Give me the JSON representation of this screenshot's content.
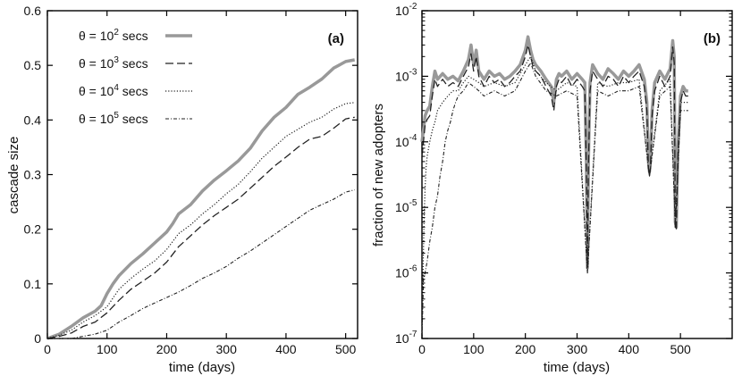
{
  "chart_data": [
    {
      "type": "line",
      "panel_label": "(a)",
      "xlabel": "time (days)",
      "ylabel": "cascade size",
      "xlim": [
        0,
        520
      ],
      "ylim": [
        0,
        0.6
      ],
      "xticks": [
        0,
        100,
        200,
        300,
        400,
        500
      ],
      "yticks": [
        0,
        0.1,
        0.2,
        0.3,
        0.4,
        0.5,
        0.6
      ],
      "xtick_labels": [
        "0",
        "100",
        "200",
        "300",
        "400",
        "500"
      ],
      "ytick_labels": [
        "0",
        "0.1",
        "0.2",
        "0.3",
        "0.4",
        "0.5",
        "0.6"
      ],
      "grid": false,
      "legend_position": "top-left",
      "series": [
        {
          "name": "θ = 10² secs",
          "name_base": "θ = 10",
          "name_exp": "2",
          "name_unit": "secs",
          "style": "thick-solid",
          "color": "#999999",
          "x": [
            0,
            20,
            40,
            60,
            80,
            90,
            100,
            110,
            120,
            140,
            160,
            180,
            200,
            210,
            220,
            240,
            260,
            280,
            300,
            320,
            340,
            360,
            380,
            400,
            420,
            440,
            460,
            480,
            500,
            515
          ],
          "y": [
            0,
            0.008,
            0.022,
            0.038,
            0.05,
            0.06,
            0.082,
            0.1,
            0.115,
            0.137,
            0.155,
            0.175,
            0.195,
            0.21,
            0.228,
            0.245,
            0.27,
            0.29,
            0.307,
            0.325,
            0.348,
            0.38,
            0.405,
            0.423,
            0.447,
            0.46,
            0.475,
            0.495,
            0.507,
            0.51
          ]
        },
        {
          "name": "θ = 10³ secs",
          "name_base": "θ = 10",
          "name_exp": "3",
          "name_unit": "secs",
          "style": "long-dash",
          "color": "#222222",
          "x": [
            0,
            20,
            40,
            60,
            80,
            100,
            120,
            140,
            160,
            180,
            200,
            220,
            240,
            260,
            280,
            300,
            320,
            340,
            360,
            380,
            400,
            420,
            440,
            460,
            480,
            500,
            515
          ],
          "y": [
            0,
            0.004,
            0.01,
            0.022,
            0.03,
            0.047,
            0.07,
            0.09,
            0.105,
            0.12,
            0.14,
            0.168,
            0.188,
            0.208,
            0.225,
            0.24,
            0.255,
            0.275,
            0.295,
            0.315,
            0.332,
            0.35,
            0.365,
            0.37,
            0.385,
            0.402,
            0.405
          ]
        },
        {
          "name": "θ = 10⁴ secs",
          "name_base": "θ = 10",
          "name_exp": "4",
          "name_unit": "secs",
          "style": "dotted",
          "color": "#222222",
          "x": [
            0,
            20,
            40,
            60,
            80,
            100,
            120,
            140,
            160,
            180,
            200,
            220,
            240,
            260,
            280,
            300,
            320,
            340,
            360,
            380,
            400,
            420,
            440,
            460,
            480,
            500,
            515
          ],
          "y": [
            0,
            0.006,
            0.015,
            0.03,
            0.042,
            0.058,
            0.09,
            0.11,
            0.127,
            0.142,
            0.163,
            0.192,
            0.208,
            0.228,
            0.245,
            0.265,
            0.282,
            0.305,
            0.33,
            0.35,
            0.37,
            0.383,
            0.396,
            0.405,
            0.42,
            0.43,
            0.432
          ]
        },
        {
          "name": "θ = 10⁵ secs",
          "name_base": "θ = 10",
          "name_exp": "5",
          "name_unit": "secs",
          "style": "dash-dot",
          "color": "#222222",
          "x": [
            0,
            40,
            60,
            80,
            100,
            120,
            140,
            160,
            180,
            200,
            220,
            240,
            260,
            280,
            300,
            320,
            340,
            360,
            380,
            400,
            420,
            440,
            460,
            480,
            500,
            515
          ],
          "y": [
            0,
            0.0,
            0.004,
            0.008,
            0.015,
            0.03,
            0.042,
            0.055,
            0.065,
            0.075,
            0.085,
            0.097,
            0.11,
            0.12,
            0.132,
            0.147,
            0.16,
            0.175,
            0.19,
            0.205,
            0.22,
            0.235,
            0.245,
            0.255,
            0.268,
            0.272
          ]
        }
      ]
    },
    {
      "type": "line",
      "panel_label": "(b)",
      "xlabel": "time (days)",
      "ylabel": "fraction of new adopters",
      "xlim": [
        0,
        600
      ],
      "ylim_exp": [
        -7,
        -2
      ],
      "yscale": "log",
      "xticks": [
        0,
        100,
        200,
        300,
        400,
        500
      ],
      "xtick_labels": [
        "0",
        "100",
        "200",
        "300",
        "400",
        "500"
      ],
      "ytick_base": "10",
      "ytick_exponents": [
        "-7",
        "-6",
        "-5",
        "-4",
        "-3",
        "-2"
      ],
      "grid": false,
      "series": [
        {
          "style": "thick-solid",
          "color": "#999999",
          "x": [
            0,
            3,
            6,
            10,
            15,
            20,
            25,
            30,
            40,
            50,
            60,
            70,
            80,
            90,
            95,
            100,
            105,
            110,
            120,
            130,
            140,
            150,
            160,
            170,
            180,
            190,
            200,
            205,
            210,
            215,
            220,
            230,
            240,
            250,
            255,
            260,
            265,
            270,
            280,
            290,
            300,
            310,
            315,
            318,
            320,
            322,
            325,
            330,
            340,
            350,
            360,
            370,
            380,
            390,
            400,
            410,
            420,
            430,
            435,
            438,
            440,
            442,
            445,
            450,
            460,
            470,
            480,
            485,
            488,
            490,
            492,
            495,
            500,
            505,
            510,
            515
          ],
          "y": [
            0.0001,
            0.00015,
            0.00025,
            0.0003,
            0.00035,
            0.0007,
            0.0012,
            0.0009,
            0.0011,
            0.0009,
            0.001,
            0.00085,
            0.0012,
            0.0018,
            0.003,
            0.0015,
            0.0025,
            0.0012,
            0.0009,
            0.0012,
            0.001,
            0.0011,
            0.0009,
            0.001,
            0.0012,
            0.0015,
            0.0025,
            0.004,
            0.0025,
            0.0018,
            0.0015,
            0.0012,
            0.0009,
            0.0007,
            0.0004,
            0.0009,
            0.0011,
            0.001,
            0.0012,
            0.0009,
            0.0011,
            0.0009,
            0.0008,
            5e-05,
            1.2e-06,
            5e-05,
            0.0008,
            0.0015,
            0.0011,
            0.0009,
            0.0013,
            0.0011,
            0.0009,
            0.0012,
            0.001,
            0.0012,
            0.0015,
            0.0009,
            0.0004,
            5e-05,
            3.5e-05,
            5e-05,
            0.0003,
            0.0008,
            0.0012,
            0.0009,
            0.0013,
            0.0035,
            0.002,
            6e-06,
            5e-06,
            8e-05,
            0.0005,
            0.0007,
            0.0006,
            0.0006
          ]
        },
        {
          "style": "long-dash",
          "color": "#222222",
          "x": [
            0,
            3,
            6,
            10,
            15,
            20,
            25,
            30,
            40,
            50,
            60,
            70,
            80,
            90,
            95,
            100,
            105,
            110,
            120,
            130,
            140,
            150,
            160,
            170,
            180,
            190,
            200,
            205,
            210,
            215,
            220,
            230,
            240,
            250,
            255,
            260,
            265,
            270,
            280,
            290,
            300,
            310,
            315,
            318,
            320,
            322,
            325,
            330,
            340,
            350,
            360,
            370,
            380,
            390,
            400,
            410,
            420,
            430,
            435,
            438,
            440,
            442,
            445,
            450,
            460,
            470,
            480,
            485,
            488,
            490,
            492,
            495,
            500,
            505,
            510,
            515
          ],
          "y": [
            6e-05,
            0.0001,
            0.00018,
            0.00022,
            0.00025,
            0.0005,
            0.0009,
            0.0007,
            0.0009,
            0.0007,
            0.0008,
            0.0007,
            0.001,
            0.0014,
            0.0022,
            0.0012,
            0.002,
            0.001,
            0.0007,
            0.001,
            0.0008,
            0.0009,
            0.0007,
            0.0008,
            0.001,
            0.0012,
            0.002,
            0.003,
            0.002,
            0.0014,
            0.0012,
            0.001,
            0.0007,
            0.0005,
            0.0003,
            0.0007,
            0.0009,
            0.0008,
            0.001,
            0.0007,
            0.0009,
            0.0007,
            0.0006,
            4e-05,
            1.2e-06,
            4e-05,
            0.0006,
            0.0012,
            0.0009,
            0.0007,
            0.001,
            0.0009,
            0.0007,
            0.001,
            0.0008,
            0.001,
            0.0012,
            0.0007,
            0.0003,
            4e-05,
            3e-05,
            4e-05,
            0.00025,
            0.0006,
            0.001,
            0.0007,
            0.001,
            0.0028,
            0.0016,
            5e-06,
            4.5e-06,
            6e-05,
            0.0004,
            0.0006,
            0.0005,
            0.0005
          ]
        },
        {
          "style": "dotted",
          "color": "#222222",
          "x": [
            0,
            2,
            4,
            6,
            8,
            10,
            15,
            20,
            25,
            30,
            40,
            50,
            60,
            70,
            80,
            90,
            100,
            110,
            120,
            140,
            160,
            180,
            200,
            210,
            220,
            240,
            260,
            280,
            300,
            320,
            340,
            360,
            380,
            400,
            420,
            438,
            440,
            460,
            480,
            490,
            500,
            515
          ],
          "y": [
            1e-07,
            1e-06,
            6e-06,
            2e-05,
            4e-05,
            6e-05,
            0.0001,
            0.00015,
            0.0002,
            0.0003,
            0.0004,
            0.0005,
            0.0006,
            0.0006,
            0.0008,
            0.001,
            0.0009,
            0.0008,
            0.0007,
            0.0008,
            0.0007,
            0.0008,
            0.0015,
            0.002,
            0.0012,
            0.0008,
            0.0006,
            0.0008,
            0.0007,
            1e-06,
            0.0008,
            0.0007,
            0.0008,
            0.0008,
            0.0009,
            4e-05,
            3e-05,
            0.0006,
            0.0009,
            5e-06,
            0.0004,
            0.0004
          ]
        },
        {
          "style": "dash-dot",
          "color": "#222222",
          "x": [
            0,
            3,
            6,
            10,
            15,
            20,
            25,
            30,
            35,
            40,
            45,
            50,
            55,
            60,
            65,
            70,
            80,
            90,
            100,
            110,
            120,
            140,
            160,
            180,
            200,
            210,
            220,
            240,
            260,
            280,
            300,
            320,
            340,
            360,
            380,
            400,
            420,
            438,
            440,
            460,
            480,
            490,
            500,
            515
          ],
          "y": [
            1e-07,
            8e-07,
            1e-06,
            1.5e-06,
            3e-06,
            5e-06,
            1e-05,
            1.5e-05,
            3e-05,
            5e-05,
            0.0001,
            0.00015,
            0.0002,
            0.0003,
            0.0004,
            0.0005,
            0.0006,
            0.0008,
            0.0007,
            0.0006,
            0.0005,
            0.0006,
            0.0005,
            0.0006,
            0.0012,
            0.0016,
            0.001,
            0.0006,
            0.0005,
            0.0006,
            0.0005,
            1e-06,
            0.0006,
            0.0005,
            0.0006,
            0.0006,
            0.0007,
            4e-05,
            3e-05,
            0.0005,
            0.0007,
            5e-06,
            0.0003,
            0.0003
          ]
        }
      ]
    }
  ]
}
